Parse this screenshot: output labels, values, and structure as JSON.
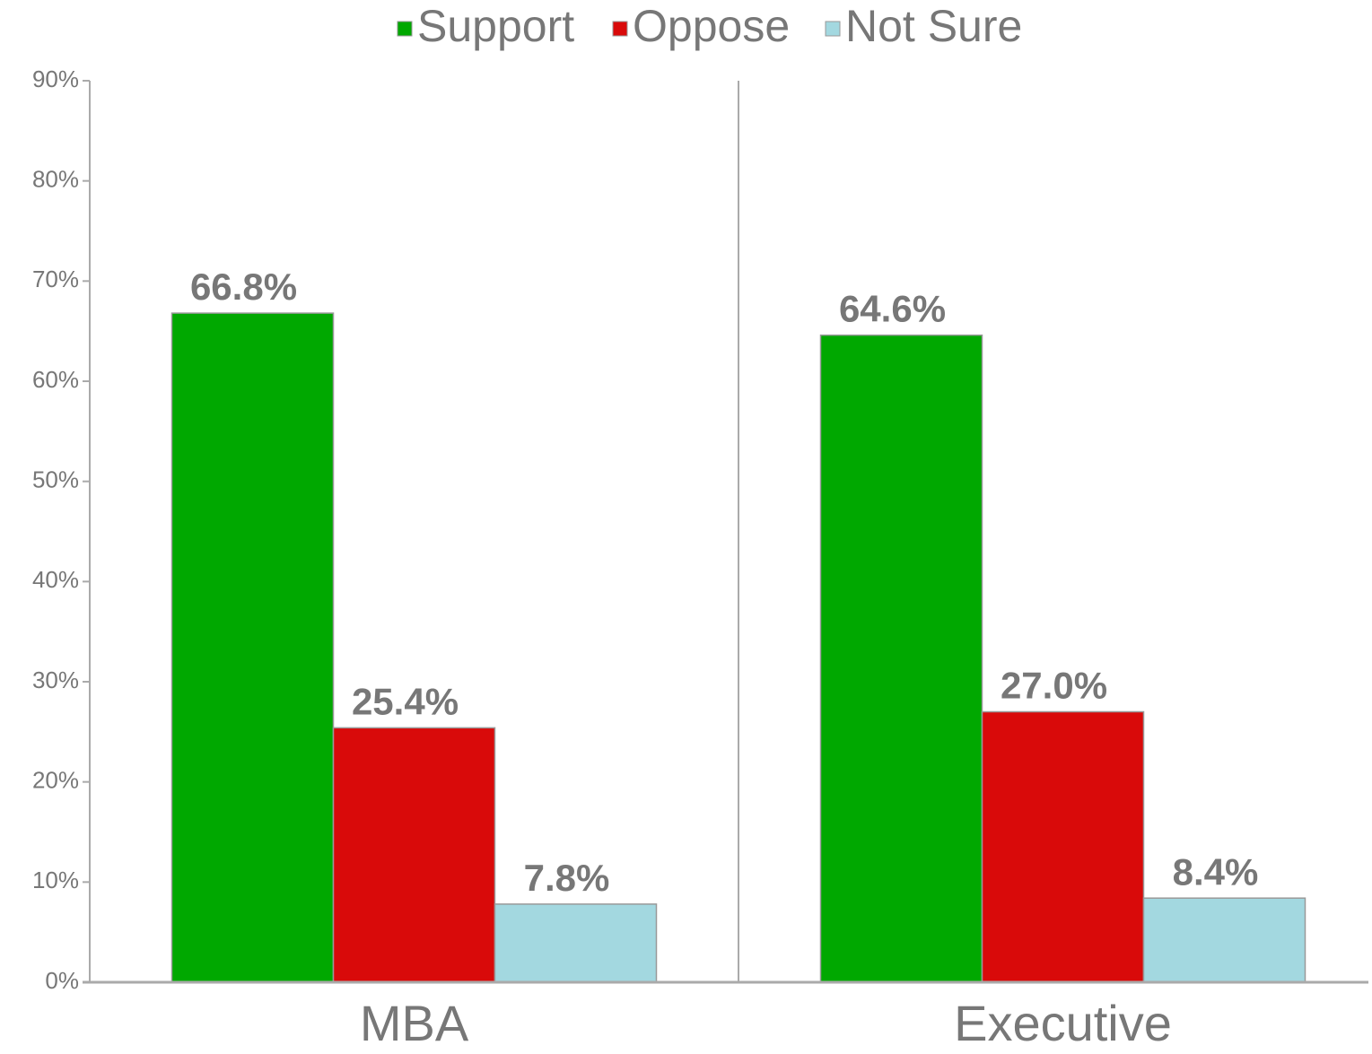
{
  "chart_data": {
    "type": "bar",
    "categories": [
      "MBA",
      "Executive"
    ],
    "series": [
      {
        "name": "Support",
        "color": "#00a800",
        "values": [
          66.8,
          64.6
        ],
        "value_labels": [
          "66.8%",
          "64.6%"
        ]
      },
      {
        "name": "Oppose",
        "color": "#d90a0a",
        "values": [
          25.4,
          27.0
        ],
        "value_labels": [
          "25.4%",
          "27.0%"
        ]
      },
      {
        "name": "Not Sure",
        "color": "#a3d8e0",
        "values": [
          7.8,
          8.4
        ],
        "value_labels": [
          "7.8%",
          "8.4%"
        ]
      }
    ],
    "ylim": [
      0,
      90
    ],
    "yticks": [
      {
        "value": 0,
        "label": "0%"
      },
      {
        "value": 10,
        "label": "10%"
      },
      {
        "value": 20,
        "label": "20%"
      },
      {
        "value": 30,
        "label": "30%"
      },
      {
        "value": 40,
        "label": "40%"
      },
      {
        "value": 50,
        "label": "50%"
      },
      {
        "value": 60,
        "label": "60%"
      },
      {
        "value": 70,
        "label": "70%"
      },
      {
        "value": 80,
        "label": "80%"
      },
      {
        "value": 90,
        "label": "90%"
      }
    ],
    "legend": "top"
  }
}
